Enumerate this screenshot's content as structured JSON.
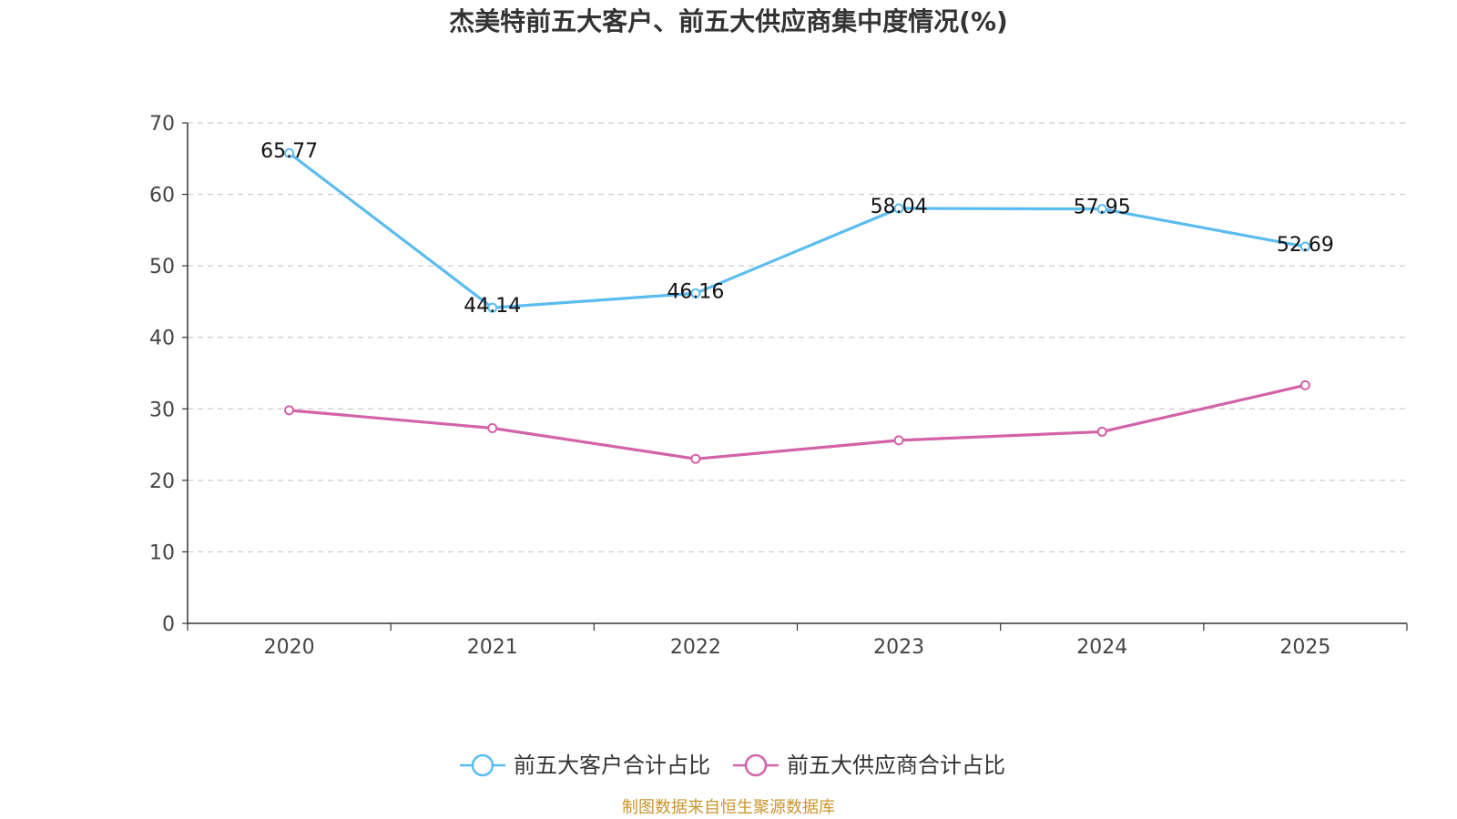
{
  "chart_data": {
    "type": "line",
    "title": "杰美特前五大客户、前五大供应商集中度情况(%)",
    "categories": [
      "2020",
      "2021",
      "2022",
      "2023",
      "2024",
      "2025"
    ],
    "ylim": [
      0,
      70
    ],
    "yticks": [
      "0",
      "10",
      "20",
      "30",
      "40",
      "50",
      "60",
      "70"
    ],
    "grid": true,
    "legend_position": "bottom-center",
    "series": [
      {
        "name": "前五大客户合计占比",
        "color": "#5bbcf0",
        "values": [
          65.77,
          44.14,
          46.16,
          58.04,
          57.95,
          52.69
        ],
        "labels": [
          "65.77",
          "44.14",
          "46.16",
          "58.04",
          "57.95",
          "52.69"
        ]
      },
      {
        "name": "前五大供应商合计占比",
        "color": "#d363a8",
        "values": [
          29.8,
          27.3,
          23.0,
          25.6,
          26.8,
          33.3
        ],
        "labels": null
      }
    ]
  },
  "footer": {
    "source": "制图数据来自恒生聚源数据库",
    "source_color": "#c8962e"
  }
}
